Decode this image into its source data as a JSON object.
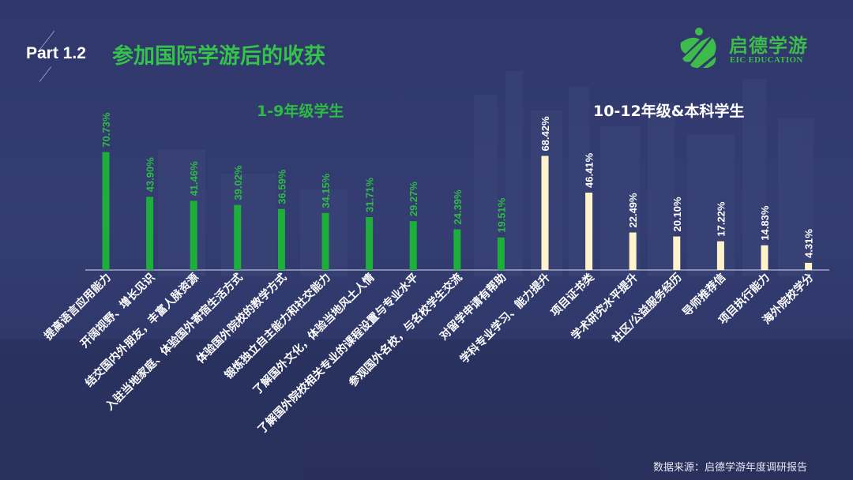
{
  "header": {
    "part": "Part 1.2",
    "title": "参加国际学游后的收获"
  },
  "logo": {
    "cn": "启德学游",
    "en": "EIC EDUCATION",
    "mark": "eic-logo-icon"
  },
  "groups": {
    "left": "1-9年级学生",
    "right": "10-12年级&本科学生"
  },
  "source": "数据来源：启德学游年度调研报告",
  "colors": {
    "background": "#333b6f",
    "accent_green": "#34c24a",
    "bar_green": "#1dae3c",
    "bar_cream": "#fff3cc",
    "label_green": "#2dbb44"
  },
  "chart_data": {
    "type": "bar",
    "title": "参加国际学游后的收获",
    "categories": [
      "提高语言应用能力",
      "开阔视野、增长见识",
      "结交国内外朋友，丰富人脉资源",
      "入驻当地家庭、体验国外寄宿生活方式",
      "体验国外院校的教学方式",
      "锻炼独立自主能力和社交能力",
      "了解国外文化，体验当地风土人情",
      "了解国外院校相关专业的课程设置与专业水平",
      "参观国外名校，与名校学生交流",
      "对留学申请有帮助",
      "学科专业学习、能力提升",
      "项目证书类",
      "学术研究水平提升",
      "社区/公益服务经历",
      "导师推荐信",
      "项目执行能力",
      "海外院校学分"
    ],
    "values": [
      70.73,
      43.9,
      41.46,
      39.02,
      36.59,
      34.15,
      31.71,
      29.27,
      24.39,
      19.51,
      68.42,
      46.41,
      22.49,
      20.1,
      17.22,
      14.83,
      4.31
    ],
    "value_labels": [
      "70.73%",
      "43.90%",
      "41.46%",
      "39.02%",
      "36.59%",
      "34.15%",
      "31.71%",
      "29.27%",
      "24.39%",
      "19.51%",
      "68.42%",
      "46.41%",
      "22.49%",
      "20.10%",
      "17.22%",
      "14.83%",
      "4.31%"
    ],
    "groups": [
      "1-9年级学生",
      "1-9年级学生",
      "1-9年级学生",
      "1-9年级学生",
      "1-9年级学生",
      "1-9年级学生",
      "1-9年级学生",
      "1-9年级学生",
      "1-9年级学生",
      "1-9年级学生",
      "10-12年级&本科学生",
      "10-12年级&本科学生",
      "10-12年级&本科学生",
      "10-12年级&本科学生",
      "10-12年级&本科学生",
      "10-12年级&本科学生",
      "10-12年级&本科学生"
    ],
    "unit": "%",
    "ylim": [
      0,
      71
    ],
    "grid": false,
    "legend": "none"
  }
}
